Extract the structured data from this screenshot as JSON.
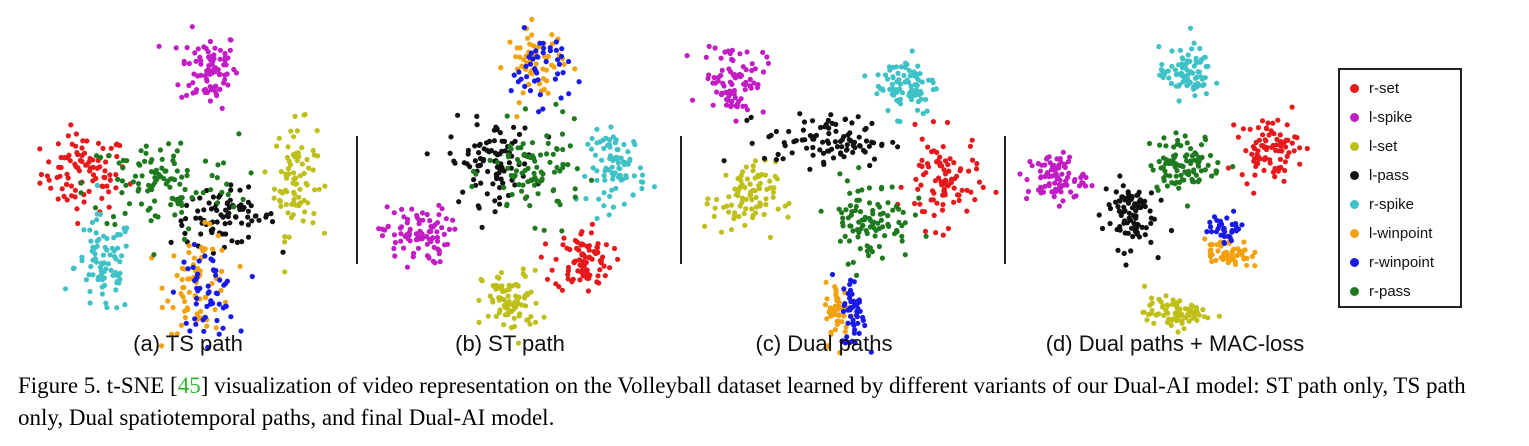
{
  "figure": {
    "caption_prefix": "Figure 5. t-SNE [",
    "caption_ref": "45",
    "caption_suffix": "] visualization of video representation on the Volleyball dataset learned by different variants of our Dual-AI model: ST path only, TS path only, Dual spatiotemporal paths, and final Dual-AI model."
  },
  "panels": [
    {
      "label": "(a) TS path"
    },
    {
      "label": "(b) ST path"
    },
    {
      "label": "(c) Dual paths"
    },
    {
      "label": "(d) Dual paths + MAC-loss"
    }
  ],
  "legend": [
    {
      "label": "r-set",
      "color": "#e8191a"
    },
    {
      "label": "l-spike",
      "color": "#c21cc4"
    },
    {
      "label": "l-set",
      "color": "#bfbf1a"
    },
    {
      "label": "l-pass",
      "color": "#111111"
    },
    {
      "label": "r-spike",
      "color": "#3fc2c7"
    },
    {
      "label": "l-winpoint",
      "color": "#f2a20f"
    },
    {
      "label": "r-winpoint",
      "color": "#1a1ae8"
    },
    {
      "label": "r-pass",
      "color": "#1f7a1f"
    }
  ],
  "chart_data": [
    {
      "type": "scatter",
      "title": "(a) TS path",
      "clusters": [
        {
          "class": "r-set",
          "center": [
            -2.2,
            0.4
          ],
          "spread": [
            0.45,
            0.35
          ],
          "n": 95
        },
        {
          "class": "l-spike",
          "center": [
            0.4,
            2.3
          ],
          "spread": [
            0.3,
            0.35
          ],
          "n": 85
        },
        {
          "class": "l-set",
          "center": [
            2.2,
            0.3
          ],
          "spread": [
            0.22,
            0.5
          ],
          "n": 85
        },
        {
          "class": "l-pass",
          "center": [
            0.7,
            -0.4
          ],
          "spread": [
            0.55,
            0.25
          ],
          "n": 85
        },
        {
          "class": "r-spike",
          "center": [
            -1.8,
            -1.3
          ],
          "spread": [
            0.3,
            0.45
          ],
          "n": 85
        },
        {
          "class": "l-winpoint",
          "center": [
            0.2,
            -1.6
          ],
          "spread": [
            0.35,
            0.45
          ],
          "n": 70
        },
        {
          "class": "r-winpoint",
          "center": [
            0.35,
            -1.8
          ],
          "spread": [
            0.3,
            0.4
          ],
          "n": 55
        },
        {
          "class": "r-pass",
          "center": [
            -0.6,
            0.2
          ],
          "spread": [
            0.8,
            0.45
          ],
          "n": 110
        }
      ]
    },
    {
      "type": "scatter",
      "title": "(b) ST path",
      "clusters": [
        {
          "class": "r-set",
          "center": [
            1.4,
            -1.4
          ],
          "spread": [
            0.3,
            0.3
          ],
          "n": 85
        },
        {
          "class": "l-spike",
          "center": [
            -2.1,
            -0.9
          ],
          "spread": [
            0.35,
            0.28
          ],
          "n": 85
        },
        {
          "class": "l-set",
          "center": [
            -0.1,
            -2.2
          ],
          "spread": [
            0.3,
            0.3
          ],
          "n": 85
        },
        {
          "class": "l-pass",
          "center": [
            -0.5,
            0.5
          ],
          "spread": [
            0.45,
            0.4
          ],
          "n": 95
        },
        {
          "class": "r-spike",
          "center": [
            2.1,
            0.4
          ],
          "spread": [
            0.3,
            0.35
          ],
          "n": 85
        },
        {
          "class": "l-winpoint",
          "center": [
            0.4,
            2.4
          ],
          "spread": [
            0.3,
            0.35
          ],
          "n": 60
        },
        {
          "class": "r-winpoint",
          "center": [
            0.5,
            2.3
          ],
          "spread": [
            0.3,
            0.35
          ],
          "n": 45
        },
        {
          "class": "r-pass",
          "center": [
            0.4,
            0.3
          ],
          "spread": [
            0.5,
            0.45
          ],
          "n": 90
        }
      ]
    },
    {
      "type": "scatter",
      "title": "(c) Dual paths",
      "clusters": [
        {
          "class": "r-set",
          "center": [
            2.0,
            0.1
          ],
          "spread": [
            0.35,
            0.45
          ],
          "n": 90
        },
        {
          "class": "l-spike",
          "center": [
            -2.0,
            2.1
          ],
          "spread": [
            0.3,
            0.35
          ],
          "n": 85
        },
        {
          "class": "l-set",
          "center": [
            -1.8,
            -0.2
          ],
          "spread": [
            0.3,
            0.35
          ],
          "n": 85
        },
        {
          "class": "l-pass",
          "center": [
            -0.2,
            0.9
          ],
          "spread": [
            0.6,
            0.25
          ],
          "n": 95
        },
        {
          "class": "r-spike",
          "center": [
            1.3,
            2.0
          ],
          "spread": [
            0.3,
            0.3
          ],
          "n": 85
        },
        {
          "class": "l-winpoint",
          "center": [
            0.0,
            -2.4
          ],
          "spread": [
            0.12,
            0.3
          ],
          "n": 45
        },
        {
          "class": "r-winpoint",
          "center": [
            0.3,
            -2.4
          ],
          "spread": [
            0.12,
            0.35
          ],
          "n": 50
        },
        {
          "class": "r-pass",
          "center": [
            0.6,
            -0.6
          ],
          "spread": [
            0.4,
            0.4
          ],
          "n": 95
        }
      ]
    },
    {
      "type": "scatter",
      "title": "(d) Dual paths + MAC-loss",
      "clusters": [
        {
          "class": "r-set",
          "center": [
            2.0,
            0.8
          ],
          "spread": [
            0.28,
            0.3
          ],
          "n": 85
        },
        {
          "class": "l-spike",
          "center": [
            -2.1,
            0.2
          ],
          "spread": [
            0.28,
            0.25
          ],
          "n": 85
        },
        {
          "class": "l-set",
          "center": [
            0.2,
            -2.5
          ],
          "spread": [
            0.3,
            0.15
          ],
          "n": 80
        },
        {
          "class": "l-pass",
          "center": [
            -0.7,
            -0.5
          ],
          "spread": [
            0.25,
            0.35
          ],
          "n": 90
        },
        {
          "class": "r-spike",
          "center": [
            0.4,
            2.3
          ],
          "spread": [
            0.25,
            0.25
          ],
          "n": 80
        },
        {
          "class": "l-winpoint",
          "center": [
            1.2,
            -1.3
          ],
          "spread": [
            0.22,
            0.15
          ],
          "n": 55
        },
        {
          "class": "r-winpoint",
          "center": [
            1.2,
            -0.8
          ],
          "spread": [
            0.18,
            0.15
          ],
          "n": 35
        },
        {
          "class": "r-pass",
          "center": [
            0.4,
            0.5
          ],
          "spread": [
            0.35,
            0.28
          ],
          "n": 95
        }
      ]
    }
  ]
}
